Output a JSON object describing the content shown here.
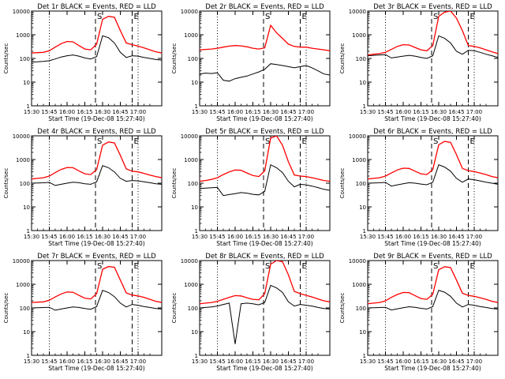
{
  "common": {
    "xlabel": "Start Time (19-Dec-08 15:27:40)",
    "ylabel": "Counts/sec",
    "x_ticks": [
      "15:30",
      "15:45",
      "16:00",
      "16:15",
      "16:30",
      "16:45",
      "17:00"
    ],
    "y_ticks": [
      "1",
      "10",
      "100",
      "1000",
      "10000"
    ],
    "colors": {
      "events": "#000000",
      "lld": "#ff0000",
      "axes": "#000000"
    }
  },
  "chart_data": [
    {
      "type": "line",
      "title": "Det 1r BLACK = Events, RED = LLD",
      "x_minutes": [
        0,
        5,
        10,
        15,
        20,
        25,
        30,
        35,
        40,
        45,
        50,
        55,
        60,
        65,
        70,
        75,
        80,
        85,
        90,
        95,
        100,
        105,
        110
      ],
      "ylim": [
        1,
        10000
      ],
      "yscale": "log",
      "marker_labels": [
        "S",
        "E"
      ],
      "series": [
        {
          "name": "Events",
          "values": [
            70,
            72,
            75,
            80,
            95,
            115,
            130,
            140,
            125,
            105,
            95,
            120,
            900,
            750,
            450,
            180,
            110,
            130,
            125,
            110,
            100,
            90,
            85
          ]
        },
        {
          "name": "LLD",
          "values": [
            170,
            175,
            180,
            210,
            300,
            420,
            520,
            500,
            350,
            250,
            230,
            400,
            4500,
            6000,
            5500,
            1500,
            450,
            380,
            330,
            280,
            230,
            190,
            170
          ]
        }
      ]
    },
    {
      "type": "line",
      "title": "Det 2r BLACK = Events, RED = LLD",
      "x_minutes": [
        0,
        5,
        10,
        15,
        20,
        25,
        30,
        35,
        40,
        45,
        50,
        55,
        60,
        65,
        70,
        75,
        80,
        85,
        90,
        95,
        100,
        105,
        110
      ],
      "ylim": [
        1,
        10000
      ],
      "yscale": "log",
      "marker_labels": [
        "S",
        "E"
      ],
      "series": [
        {
          "name": "Events",
          "values": [
            22,
            24,
            23,
            25,
            12,
            11,
            14,
            16,
            18,
            22,
            27,
            35,
            60,
            55,
            50,
            45,
            40,
            45,
            50,
            40,
            30,
            22,
            20
          ]
        },
        {
          "name": "LLD",
          "values": [
            230,
            240,
            250,
            270,
            300,
            330,
            350,
            340,
            310,
            270,
            250,
            280,
            2500,
            1200,
            700,
            400,
            320,
            300,
            300,
            270,
            250,
            230,
            210
          ]
        }
      ]
    },
    {
      "type": "line",
      "title": "Det 3r BLACK = Events, RED = LLD",
      "x_minutes": [
        0,
        5,
        10,
        15,
        20,
        25,
        30,
        35,
        40,
        45,
        50,
        55,
        60,
        65,
        70,
        75,
        80,
        85,
        90,
        95,
        100,
        105,
        110
      ],
      "ylim": [
        1,
        10000
      ],
      "yscale": "log",
      "marker_labels": [
        "S",
        "E"
      ],
      "series": [
        {
          "name": "Events",
          "values": [
            130,
            135,
            140,
            145,
            105,
            115,
            125,
            135,
            125,
            110,
            100,
            130,
            900,
            700,
            450,
            200,
            150,
            220,
            210,
            180,
            150,
            130,
            110
          ]
        },
        {
          "name": "LLD",
          "values": [
            140,
            150,
            160,
            180,
            240,
            320,
            380,
            370,
            290,
            230,
            210,
            350,
            6000,
            9000,
            10000,
            5000,
            1500,
            350,
            320,
            280,
            230,
            190,
            160
          ]
        }
      ]
    },
    {
      "type": "line",
      "title": "Det 4r BLACK = Events, RED = LLD",
      "x_minutes": [
        0,
        5,
        10,
        15,
        20,
        25,
        30,
        35,
        40,
        45,
        50,
        55,
        60,
        65,
        70,
        75,
        80,
        85,
        90,
        95,
        100,
        105,
        110
      ],
      "ylim": [
        1,
        10000
      ],
      "yscale": "log",
      "marker_labels": [
        "S",
        "E"
      ],
      "series": [
        {
          "name": "Events",
          "values": [
            100,
            102,
            104,
            108,
            80,
            90,
            100,
            110,
            105,
            95,
            90,
            115,
            550,
            450,
            300,
            160,
            120,
            130,
            125,
            115,
            105,
            95,
            90
          ]
        },
        {
          "name": "LLD",
          "values": [
            150,
            160,
            170,
            200,
            280,
            380,
            460,
            450,
            330,
            250,
            230,
            380,
            4000,
            5500,
            5000,
            1500,
            400,
            320,
            300,
            260,
            220,
            190,
            170
          ]
        }
      ]
    },
    {
      "type": "line",
      "title": "Det 5r BLACK = Events, RED = LLD",
      "x_minutes": [
        0,
        5,
        10,
        15,
        20,
        25,
        30,
        35,
        40,
        45,
        50,
        55,
        60,
        65,
        70,
        75,
        80,
        85,
        90,
        95,
        100,
        105,
        110
      ],
      "ylim": [
        1,
        10000
      ],
      "yscale": "log",
      "marker_labels": [
        "S",
        "E"
      ],
      "series": [
        {
          "name": "Events",
          "values": [
            60,
            62,
            64,
            66,
            30,
            33,
            36,
            40,
            38,
            34,
            32,
            45,
            600,
            450,
            280,
            120,
            70,
            90,
            85,
            75,
            65,
            55,
            50
          ]
        },
        {
          "name": "LLD",
          "values": [
            120,
            130,
            145,
            170,
            230,
            300,
            360,
            350,
            270,
            210,
            190,
            330,
            8000,
            10000,
            4000,
            800,
            220,
            200,
            190,
            170,
            150,
            130,
            120
          ]
        }
      ]
    },
    {
      "type": "line",
      "title": "Det 6r BLACK = Events, RED = LLD",
      "x_minutes": [
        0,
        5,
        10,
        15,
        20,
        25,
        30,
        35,
        40,
        45,
        50,
        55,
        60,
        65,
        70,
        75,
        80,
        85,
        90,
        95,
        100,
        105,
        110
      ],
      "ylim": [
        1,
        10000
      ],
      "yscale": "log",
      "marker_labels": [
        "S",
        "E"
      ],
      "series": [
        {
          "name": "Events",
          "values": [
            100,
            102,
            104,
            108,
            75,
            85,
            95,
            105,
            100,
            92,
            86,
            110,
            600,
            480,
            320,
            160,
            110,
            150,
            140,
            125,
            110,
            100,
            90
          ]
        },
        {
          "name": "LLD",
          "values": [
            150,
            160,
            170,
            200,
            270,
            360,
            430,
            420,
            320,
            250,
            230,
            380,
            4200,
            5800,
            5300,
            1600,
            420,
            340,
            310,
            270,
            230,
            190,
            170
          ]
        }
      ]
    },
    {
      "type": "line",
      "title": "Det 7r BLACK = Events, RED = LLD",
      "x_minutes": [
        0,
        5,
        10,
        15,
        20,
        25,
        30,
        35,
        40,
        45,
        50,
        55,
        60,
        65,
        70,
        75,
        80,
        85,
        90,
        95,
        100,
        105,
        110
      ],
      "ylim": [
        1,
        10000
      ],
      "yscale": "log",
      "marker_labels": [
        "S",
        "E"
      ],
      "series": [
        {
          "name": "Events",
          "values": [
            100,
            102,
            104,
            106,
            80,
            90,
            100,
            110,
            105,
            95,
            88,
            115,
            550,
            450,
            300,
            160,
            110,
            140,
            130,
            115,
            105,
            95,
            90
          ]
        },
        {
          "name": "LLD",
          "values": [
            170,
            175,
            180,
            210,
            290,
            390,
            470,
            460,
            340,
            260,
            240,
            400,
            4300,
            5600,
            5200,
            1500,
            430,
            350,
            320,
            280,
            230,
            190,
            170
          ]
        }
      ]
    },
    {
      "type": "line",
      "title": "Det 8r BLACK = Events, RED = LLD",
      "x_minutes": [
        0,
        5,
        10,
        15,
        20,
        25,
        30,
        35,
        40,
        45,
        50,
        55,
        60,
        65,
        70,
        75,
        80,
        85,
        90,
        95,
        100,
        105,
        110
      ],
      "ylim": [
        1,
        10000
      ],
      "yscale": "log",
      "marker_labels": [
        "S",
        "E"
      ],
      "series": [
        {
          "name": "Events",
          "values": [
            100,
            105,
            110,
            120,
            140,
            160,
            3,
            150,
            160,
            150,
            135,
            170,
            900,
            700,
            450,
            180,
            120,
            140,
            130,
            120,
            105,
            95,
            90
          ]
        },
        {
          "name": "LLD",
          "values": [
            150,
            160,
            170,
            190,
            230,
            280,
            330,
            320,
            270,
            230,
            220,
            400,
            7000,
            10000,
            9000,
            2500,
            500,
            400,
            340,
            290,
            240,
            200,
            180
          ]
        }
      ]
    },
    {
      "type": "line",
      "title": "Det 9r BLACK = Events, RED = LLD",
      "x_minutes": [
        0,
        5,
        10,
        15,
        20,
        25,
        30,
        35,
        40,
        45,
        50,
        55,
        60,
        65,
        70,
        75,
        80,
        85,
        90,
        95,
        100,
        105,
        110
      ],
      "ylim": [
        1,
        10000
      ],
      "yscale": "log",
      "marker_labels": [
        "S",
        "E"
      ],
      "series": [
        {
          "name": "Events",
          "values": [
            100,
            102,
            104,
            106,
            82,
            92,
            102,
            112,
            106,
            96,
            90,
            115,
            560,
            460,
            310,
            160,
            110,
            140,
            130,
            115,
            105,
            95,
            90
          ]
        },
        {
          "name": "LLD",
          "values": [
            150,
            160,
            170,
            200,
            280,
            370,
            450,
            440,
            330,
            250,
            230,
            380,
            4100,
            5500,
            5100,
            1500,
            420,
            340,
            310,
            270,
            230,
            190,
            170
          ]
        }
      ]
    }
  ]
}
